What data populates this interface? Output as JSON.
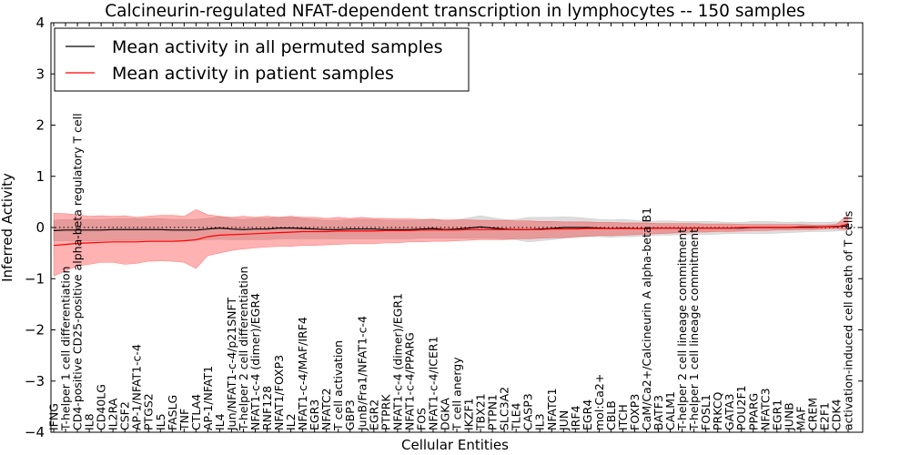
{
  "chart_data": {
    "type": "line",
    "title": "Calcineurin-regulated NFAT-dependent transcription in lymphocytes -- 150 samples",
    "xlabel": "Cellular Entities",
    "ylabel": "Inferred Activity",
    "ylim": [
      -4,
      4
    ],
    "yticks": [
      -4,
      -3,
      -2,
      -1,
      0,
      1,
      2,
      3,
      4
    ],
    "ytick_labels": [
      "−4",
      "−3",
      "−2",
      "−1",
      "0",
      "1",
      "2",
      "3",
      "4"
    ],
    "grid": false,
    "zero_line": "dotted",
    "legend_position": "top-left",
    "categories": [
      "IFNG",
      "T-helper 1 cell differentiation",
      "CD4-positive CD25-positive alpha-beta regulatory T cell",
      "IL8",
      "CD40LG",
      "IL2RA",
      "CSF2",
      "AP-1/NFAT1-c-4",
      "PTGS2",
      "IL5",
      "FASLG",
      "TNF",
      "CTLA4",
      "AP-1/NFAT1",
      "IL4",
      "Jun/NFAT1-c-4/p21SNFT",
      "T-helper 2 cell differentiation",
      "NFAT1-c-4 (dimer)/EGR4",
      "RNF128",
      "NFAT1/FOXP3",
      "IL2",
      "NFAT1-c-4/MAF/IRF4",
      "EGR3",
      "NFATC2",
      "T cell activation",
      "GBP3",
      "JunB/Fra1/NFAT1-c-4",
      "EGR2",
      "PTPRK",
      "NFAT1-c-4 (dimer)/EGR1",
      "NFAT1-c-4/PPARG",
      "FOS",
      "NFAT1-c-4/ICER1",
      "DGKA",
      "T cell anergy",
      "IKZF1",
      "TBX21",
      "PTPN1",
      "SLC3A2",
      "TLE4",
      "CASP3",
      "IL3",
      "NFATC1",
      "JUN",
      "IRF4",
      "EGR4",
      "mol:Ca2+",
      "CBLB",
      "ITCH",
      "FOXP3",
      "CaM/Ca2+/Calcineurin A alpha-beta B1",
      "BATF3",
      "CALM1",
      "T-helper 2 cell lineage commitment",
      "T-helper 1 cell lineage commitment",
      "FOSL1",
      "PRKCQ",
      "GATA3",
      "POU2F1",
      "PPARG",
      "NFATC3",
      "EGR1",
      "JUNB",
      "MAF",
      "CREM",
      "E2F1",
      "CDK4",
      "activation-induced cell death of T cells"
    ],
    "series": [
      {
        "name": "Mean activity in all permuted samples",
        "color": "#000000",
        "band_color": "#b4b4b4",
        "values": [
          -0.06,
          -0.05,
          -0.05,
          -0.05,
          -0.05,
          -0.04,
          -0.04,
          -0.04,
          -0.04,
          -0.04,
          -0.05,
          -0.05,
          -0.05,
          -0.03,
          -0.01,
          -0.03,
          -0.04,
          -0.03,
          -0.03,
          -0.01,
          -0.01,
          -0.02,
          -0.03,
          -0.04,
          -0.04,
          -0.03,
          -0.03,
          -0.03,
          -0.04,
          -0.04,
          -0.04,
          -0.03,
          -0.02,
          -0.04,
          -0.03,
          -0.01,
          0.01,
          -0.01,
          -0.03,
          -0.04,
          -0.04,
          -0.03,
          -0.02,
          0.0,
          0.0,
          0.0,
          -0.01,
          -0.02,
          -0.01,
          -0.02,
          -0.02,
          -0.01,
          -0.01,
          -0.01,
          -0.01,
          -0.01,
          -0.01,
          -0.01,
          -0.01,
          0.0,
          0.0,
          0.0,
          0.0,
          0.01,
          0.01,
          0.01,
          0.02,
          0.03
        ],
        "lower": [
          -0.26,
          -0.26,
          -0.26,
          -0.26,
          -0.26,
          -0.25,
          -0.25,
          -0.25,
          -0.25,
          -0.25,
          -0.25,
          -0.25,
          -0.25,
          -0.24,
          -0.23,
          -0.24,
          -0.24,
          -0.24,
          -0.24,
          -0.22,
          -0.22,
          -0.22,
          -0.22,
          -0.22,
          -0.22,
          -0.22,
          -0.22,
          -0.22,
          -0.22,
          -0.22,
          -0.22,
          -0.21,
          -0.21,
          -0.21,
          -0.21,
          -0.21,
          -0.21,
          -0.21,
          -0.22,
          -0.24,
          -0.28,
          -0.26,
          -0.24,
          -0.21,
          -0.2,
          -0.18,
          -0.18,
          -0.19,
          -0.18,
          -0.18,
          -0.16,
          -0.15,
          -0.15,
          -0.14,
          -0.14,
          -0.14,
          -0.13,
          -0.12,
          -0.12,
          -0.12,
          -0.12,
          -0.11,
          -0.1,
          -0.09,
          -0.08,
          -0.08,
          -0.07,
          -0.05
        ],
        "upper": [
          0.14,
          0.16,
          0.16,
          0.16,
          0.16,
          0.17,
          0.17,
          0.17,
          0.17,
          0.17,
          0.16,
          0.16,
          0.16,
          0.18,
          0.21,
          0.18,
          0.16,
          0.18,
          0.18,
          0.2,
          0.2,
          0.18,
          0.16,
          0.14,
          0.14,
          0.16,
          0.16,
          0.16,
          0.14,
          0.14,
          0.14,
          0.15,
          0.17,
          0.13,
          0.15,
          0.19,
          0.23,
          0.19,
          0.16,
          0.16,
          0.2,
          0.2,
          0.2,
          0.21,
          0.2,
          0.18,
          0.16,
          0.15,
          0.16,
          0.14,
          0.12,
          0.13,
          0.13,
          0.12,
          0.12,
          0.12,
          0.11,
          0.1,
          0.1,
          0.12,
          0.12,
          0.11,
          0.1,
          0.11,
          0.1,
          0.1,
          0.11,
          0.11
        ]
      },
      {
        "name": "Mean activity in patient samples",
        "color": "#ff0000",
        "band_color": "#ff0000",
        "values": [
          -0.35,
          -0.33,
          -0.31,
          -0.3,
          -0.29,
          -0.28,
          -0.28,
          -0.28,
          -0.27,
          -0.27,
          -0.27,
          -0.26,
          -0.24,
          -0.18,
          -0.15,
          -0.14,
          -0.13,
          -0.12,
          -0.11,
          -0.1,
          -0.09,
          -0.08,
          -0.08,
          -0.08,
          -0.07,
          -0.07,
          -0.07,
          -0.07,
          -0.06,
          -0.06,
          -0.06,
          -0.05,
          -0.05,
          -0.05,
          -0.05,
          -0.04,
          -0.04,
          -0.04,
          -0.04,
          -0.04,
          -0.04,
          -0.04,
          -0.03,
          -0.03,
          -0.03,
          -0.02,
          -0.02,
          -0.02,
          -0.02,
          -0.02,
          -0.02,
          -0.01,
          -0.01,
          -0.01,
          -0.01,
          -0.01,
          -0.01,
          -0.01,
          -0.0,
          0.0,
          0.0,
          0.0,
          0.0,
          0.0,
          0.0,
          0.01,
          0.01,
          0.07
        ],
        "lower": [
          -0.95,
          -0.85,
          -0.75,
          -0.72,
          -0.68,
          -0.68,
          -0.72,
          -0.7,
          -0.66,
          -0.65,
          -0.66,
          -0.68,
          -0.8,
          -0.55,
          -0.5,
          -0.45,
          -0.42,
          -0.4,
          -0.38,
          -0.37,
          -0.37,
          -0.35,
          -0.35,
          -0.34,
          -0.33,
          -0.32,
          -0.32,
          -0.32,
          -0.3,
          -0.3,
          -0.28,
          -0.28,
          -0.27,
          -0.27,
          -0.26,
          -0.25,
          -0.24,
          -0.24,
          -0.24,
          -0.22,
          -0.22,
          -0.21,
          -0.2,
          -0.2,
          -0.18,
          -0.17,
          -0.16,
          -0.16,
          -0.15,
          -0.14,
          -0.13,
          -0.12,
          -0.11,
          -0.1,
          -0.09,
          -0.09,
          -0.08,
          -0.08,
          -0.07,
          -0.06,
          -0.06,
          -0.05,
          -0.05,
          -0.04,
          -0.04,
          -0.03,
          -0.02,
          -0.05
        ],
        "upper": [
          0.28,
          0.27,
          0.25,
          0.22,
          0.23,
          0.22,
          0.23,
          0.2,
          0.22,
          0.24,
          0.24,
          0.22,
          0.35,
          0.25,
          0.22,
          0.2,
          0.22,
          0.2,
          0.22,
          0.2,
          0.22,
          0.2,
          0.2,
          0.18,
          0.2,
          0.18,
          0.2,
          0.18,
          0.18,
          0.17,
          0.17,
          0.16,
          0.16,
          0.15,
          0.15,
          0.15,
          0.14,
          0.14,
          0.14,
          0.13,
          0.13,
          0.12,
          0.12,
          0.11,
          0.11,
          0.11,
          0.1,
          0.1,
          0.09,
          0.09,
          0.09,
          0.08,
          0.08,
          0.08,
          0.08,
          0.07,
          0.07,
          0.07,
          0.06,
          0.06,
          0.06,
          0.06,
          0.06,
          0.06,
          0.05,
          0.05,
          0.06,
          0.25
        ]
      }
    ]
  }
}
